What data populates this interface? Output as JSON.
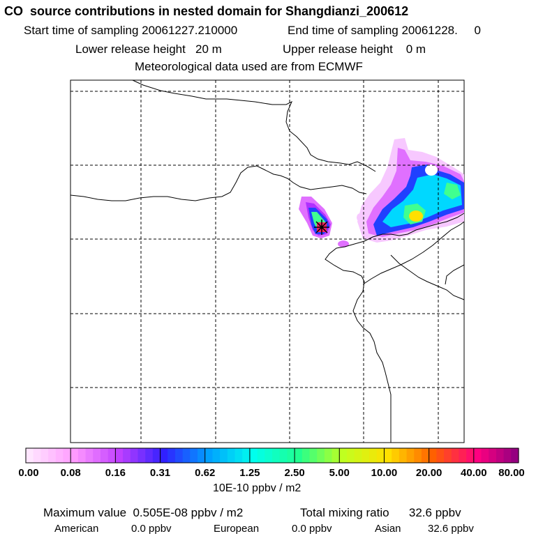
{
  "header": {
    "title": "CO  source contributions in nested domain for Shangdianzi_200612",
    "start_time": "Start time of sampling 20061227.210000",
    "end_time": "End time of sampling 20061228.     0",
    "lower_release": "Lower release height   20 m",
    "upper_release": "Upper release height    0 m",
    "met_data": "Meteorological data used are from ECMWF"
  },
  "colorbar": {
    "labels": [
      "0.00",
      "0.08",
      "0.16",
      "0.31",
      "0.62",
      "1.25",
      "2.50",
      "5.00",
      "10.00",
      "20.00",
      "40.00",
      "80.00"
    ],
    "units": "10E-10 ppbv / m2",
    "colors": [
      "#ffe6ff",
      "#ff9aff",
      "#c040ff",
      "#3020ff",
      "#00a0ff",
      "#00ffee",
      "#20ff90",
      "#c0ff20",
      "#ffe000",
      "#ff6000",
      "#ff0080",
      "#800080"
    ]
  },
  "footer": {
    "max_value": "Maximum value  0.505E-08 ppbv / m2",
    "total_mixing": "Total mixing ratio      32.6 ppbv",
    "american_label": "American",
    "american_value": "0.0 ppbv",
    "european_label": "European",
    "european_value": "0.0 ppbv",
    "asian_label": "Asian",
    "asian_value": "32.6 ppbv"
  },
  "map": {
    "receptor_marker": "star-marker",
    "plume_colors": {
      "faint": "#f7c8ff",
      "light": "#e070ff",
      "mid": "#b030ff",
      "blue": "#2040ff",
      "cyan": "#00d8ff",
      "green": "#40ff90",
      "yellow": "#ffe000"
    }
  }
}
